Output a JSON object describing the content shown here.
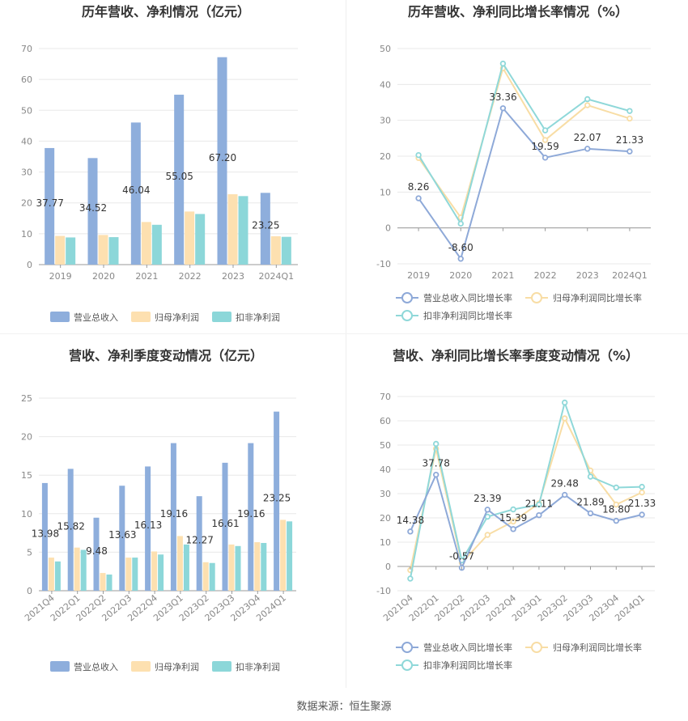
{
  "colors": {
    "revenue": "#8eaedc",
    "net_profit": "#fde0b0",
    "deducted": "#8cd7d9",
    "revenue_line": "#8ea9d8",
    "net_line": "#f8dda5",
    "deducted_line": "#8fd8d9",
    "grid": "#e8e8e8",
    "axis_text": "#888888"
  },
  "source": "数据来源：恒生聚源",
  "chart_data": [
    {
      "id": "annual-bar",
      "type": "bar",
      "title": "历年营收、净利情况（亿元）",
      "categories": [
        "2019",
        "2020",
        "2021",
        "2022",
        "2023",
        "2024Q1"
      ],
      "ylim": [
        0,
        70
      ],
      "yticks": [
        0,
        10,
        20,
        30,
        40,
        50,
        60,
        70
      ],
      "series": [
        {
          "name": "营业总收入",
          "values": [
            37.77,
            34.52,
            46.04,
            55.05,
            67.2,
            23.25
          ],
          "labels": [
            "37.77",
            "34.52",
            "46.04",
            "55.05",
            "67.20",
            "23.25"
          ]
        },
        {
          "name": "归母净利润",
          "values": [
            9.3,
            9.6,
            13.8,
            17.2,
            22.8,
            9.2
          ]
        },
        {
          "name": "扣非净利润",
          "values": [
            8.8,
            8.9,
            12.9,
            16.4,
            22.2,
            9.0
          ]
        }
      ]
    },
    {
      "id": "annual-line",
      "type": "line",
      "title": "历年营收、净利同比增长率情况（%）",
      "categories": [
        "2019",
        "2020",
        "2021",
        "2022",
        "2023",
        "2024Q1"
      ],
      "ylim": [
        -10,
        50
      ],
      "yticks": [
        -10,
        0,
        10,
        20,
        30,
        40,
        50
      ],
      "series": [
        {
          "name": "营业总收入同比增长率",
          "values": [
            8.26,
            -8.6,
            33.36,
            19.59,
            22.07,
            21.33
          ],
          "labels": [
            "8.26",
            "-8.60",
            "33.36",
            "19.59",
            "22.07",
            "21.33"
          ]
        },
        {
          "name": "归母净利润同比增长率",
          "values": [
            19.5,
            2.9,
            44.5,
            24.5,
            34.2,
            30.5
          ]
        },
        {
          "name": "扣非净利润同比增长率",
          "values": [
            20.3,
            1.2,
            45.8,
            27.2,
            35.9,
            32.6
          ]
        }
      ]
    },
    {
      "id": "quarter-bar",
      "type": "bar",
      "title": "营收、净利季度变动情况（亿元）",
      "categories": [
        "2021Q4",
        "2022Q1",
        "2022Q2",
        "2022Q3",
        "2022Q4",
        "2023Q1",
        "2023Q2",
        "2023Q3",
        "2023Q4",
        "2024Q1"
      ],
      "ylim": [
        0,
        25
      ],
      "yticks": [
        0,
        5,
        10,
        15,
        20,
        25
      ],
      "series": [
        {
          "name": "营业总收入",
          "values": [
            13.98,
            15.82,
            9.48,
            13.63,
            16.13,
            19.16,
            12.27,
            16.61,
            19.16,
            23.25
          ],
          "labels": [
            "13.98",
            "15.82",
            "9.48",
            "13.63",
            "16.13",
            "19.16",
            "12.27",
            "16.61",
            "19.16",
            "23.25"
          ]
        },
        {
          "name": "归母净利润",
          "values": [
            4.3,
            5.6,
            2.3,
            4.3,
            5.1,
            7.1,
            3.7,
            6.0,
            6.3,
            9.2
          ]
        },
        {
          "name": "扣非净利润",
          "values": [
            3.8,
            5.3,
            2.1,
            4.3,
            4.7,
            6.0,
            3.6,
            5.8,
            6.2,
            9.0
          ]
        }
      ]
    },
    {
      "id": "quarter-line",
      "type": "line",
      "title": "营收、净利同比增长率季度变动情况（%）",
      "categories": [
        "2021Q4",
        "2022Q1",
        "2022Q2",
        "2022Q3",
        "2022Q4",
        "2023Q1",
        "2023Q2",
        "2023Q3",
        "2023Q4",
        "2024Q1"
      ],
      "ylim": [
        -10,
        70
      ],
      "yticks": [
        -10,
        0,
        10,
        20,
        30,
        40,
        50,
        60,
        70
      ],
      "series": [
        {
          "name": "营业总收入同比增长率",
          "values": [
            14.38,
            37.78,
            -0.57,
            23.39,
            15.39,
            21.11,
            29.48,
            21.89,
            18.8,
            21.33
          ],
          "labels": [
            "14.38",
            "37.78",
            "-0.57",
            "23.39",
            "15.39",
            "21.11",
            "29.48",
            "21.89",
            "18.80",
            "21.33"
          ]
        },
        {
          "name": "归母净利润同比增长率",
          "values": [
            -1.5,
            48.5,
            1.5,
            13.0,
            18.5,
            26.0,
            61.0,
            39.5,
            25.5,
            30.5
          ]
        },
        {
          "name": "扣非净利润同比增长率",
          "values": [
            -5.0,
            50.5,
            2.5,
            20.5,
            23.5,
            25.5,
            67.5,
            37.0,
            32.5,
            32.8
          ]
        }
      ]
    }
  ]
}
